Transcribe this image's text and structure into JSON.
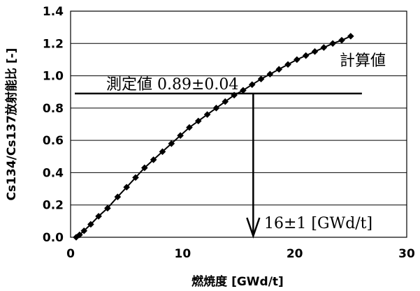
{
  "chart_data": {
    "type": "line",
    "xlabel": "燃焼度 [GWd/t]",
    "ylabel": "Cs134/Cs137放射能比 [-]",
    "xlim": [
      0,
      30
    ],
    "ylim": [
      0,
      1.4
    ],
    "x_ticks": [
      "0",
      "10",
      "20",
      "30"
    ],
    "y_ticks": [
      "0.0",
      "0.2",
      "0.4",
      "0.6",
      "0.8",
      "1.0",
      "1.2",
      "1.4"
    ],
    "grid": {
      "horizontal": true,
      "vertical": false
    },
    "series": [
      {
        "name": "計算値",
        "marker": "diamond",
        "color": "#000000",
        "points": [
          [
            0.5,
            0.0
          ],
          [
            0.8,
            0.015
          ],
          [
            1.2,
            0.04
          ],
          [
            1.8,
            0.08
          ],
          [
            2.5,
            0.13
          ],
          [
            3.3,
            0.18
          ],
          [
            4.2,
            0.25
          ],
          [
            5.0,
            0.31
          ],
          [
            5.8,
            0.37
          ],
          [
            6.6,
            0.43
          ],
          [
            7.4,
            0.48
          ],
          [
            8.2,
            0.53
          ],
          [
            9.0,
            0.58
          ],
          [
            9.8,
            0.63
          ],
          [
            10.6,
            0.68
          ],
          [
            11.4,
            0.72
          ],
          [
            12.2,
            0.76
          ],
          [
            13.0,
            0.8
          ],
          [
            13.8,
            0.84
          ],
          [
            14.6,
            0.88
          ],
          [
            15.4,
            0.91
          ],
          [
            16.2,
            0.945
          ],
          [
            17.0,
            0.98
          ],
          [
            17.8,
            1.01
          ],
          [
            18.6,
            1.04
          ],
          [
            19.4,
            1.07
          ],
          [
            20.2,
            1.1
          ],
          [
            21.0,
            1.125
          ],
          [
            21.8,
            1.15
          ],
          [
            22.6,
            1.175
          ],
          [
            23.4,
            1.2
          ],
          [
            24.2,
            1.22
          ],
          [
            25.0,
            1.245
          ]
        ]
      }
    ],
    "annotations": {
      "series_label": "計算値",
      "measured_label": "測定値 0.89±0.04",
      "measured_value": 0.89,
      "measured_line_x": [
        0.0,
        26.0
      ],
      "arrow_x": 16.3,
      "arrow_label": "16±1 [GWd/t]"
    }
  }
}
